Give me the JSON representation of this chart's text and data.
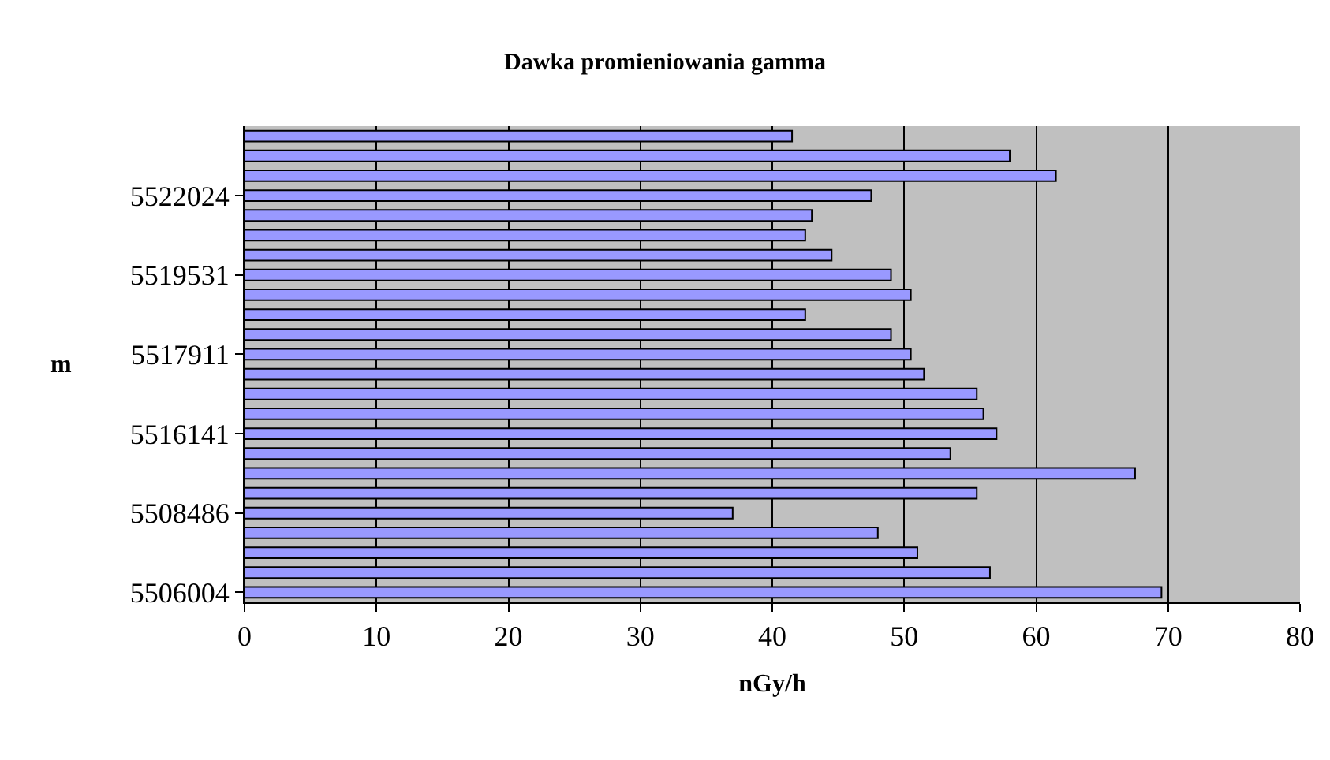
{
  "chart_data": {
    "type": "bar",
    "orientation": "horizontal",
    "title": "Dawka promieniowania gamma",
    "xlabel": "nGy/h",
    "ylabel": "m",
    "categories": [
      null,
      null,
      null,
      "5522024",
      null,
      null,
      null,
      "5519531",
      null,
      null,
      null,
      "5517911",
      null,
      null,
      null,
      "5516141",
      null,
      null,
      null,
      "5508486",
      null,
      null,
      null,
      "5506004"
    ],
    "values": [
      41.5,
      58,
      61.5,
      47.5,
      43,
      42.5,
      44.5,
      49,
      50.5,
      42.5,
      49,
      50.5,
      51.5,
      55.5,
      56,
      57,
      53.5,
      67.5,
      55.5,
      37,
      48,
      51,
      56.5,
      69.5
    ],
    "color": "#9999ff",
    "xlim": [
      0,
      80
    ],
    "xticks": [
      0,
      10,
      20,
      30,
      40,
      50,
      60,
      70,
      80
    ],
    "grid": "x",
    "legend": false
  }
}
